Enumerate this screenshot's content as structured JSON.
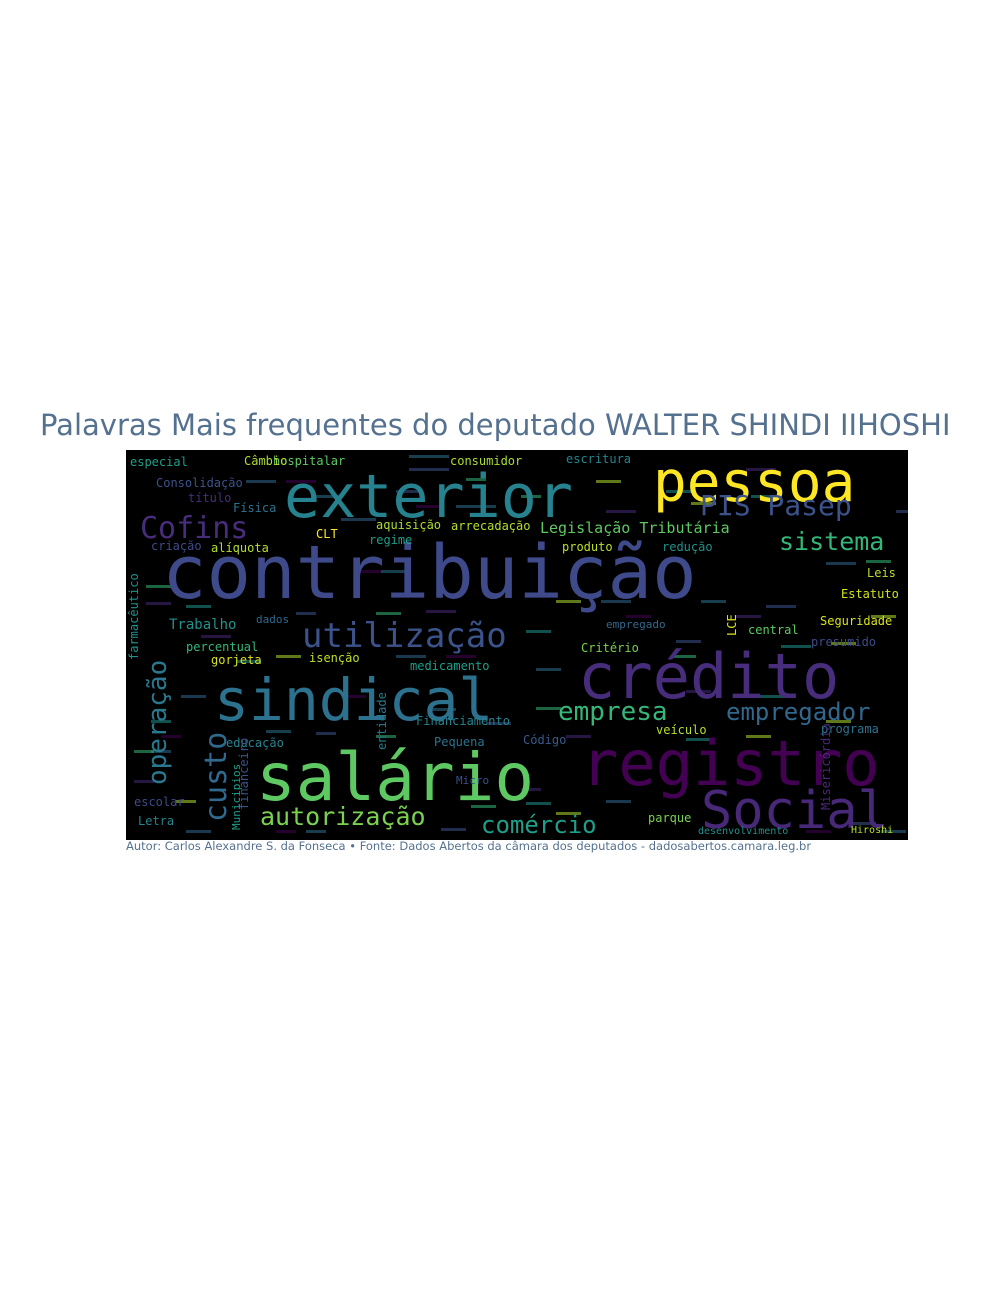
{
  "title": "Palavras Mais frequentes do deputado WALTER SHINDI IIHOSHI",
  "footer": "Autor: Carlos Alexandre S. da Fonseca • Fonte: Dados Abertos da câmara dos deputados - dadosabertos.camara.leg.br",
  "cloud_background": "#000000",
  "words": [
    {
      "text": "contribuição",
      "color": "#3e4a89"
    },
    {
      "text": "exterior",
      "color": "#26828e"
    },
    {
      "text": "pessoa",
      "color": "#fde725"
    },
    {
      "text": "crédito",
      "color": "#472d7b"
    },
    {
      "text": "sindical",
      "color": "#2c718e"
    },
    {
      "text": "salário",
      "color": "#5ec962"
    },
    {
      "text": "registro",
      "color": "#440154"
    },
    {
      "text": "Social",
      "color": "#482878"
    },
    {
      "text": "utilização",
      "color": "#3b528b"
    },
    {
      "text": "PIS Pasep",
      "color": "#3b528b"
    },
    {
      "text": "Cofins",
      "color": "#472d7b"
    },
    {
      "text": "autorização",
      "color": "#7ad151"
    },
    {
      "text": "comércio",
      "color": "#1f9e89"
    },
    {
      "text": "empresa",
      "color": "#35b779"
    },
    {
      "text": "empregador",
      "color": "#31688e"
    },
    {
      "text": "sistema",
      "color": "#35b779"
    },
    {
      "text": "operação",
      "color": "#2a788e"
    },
    {
      "text": "custo",
      "color": "#31688e"
    },
    {
      "text": "Legislação Tributária",
      "color": "#5ec962"
    },
    {
      "text": "Trabalho",
      "color": "#21918c"
    },
    {
      "text": "Seguridade",
      "color": "#d8e219"
    },
    {
      "text": "Estatuto",
      "color": "#d2e21b"
    },
    {
      "text": "hospitalar",
      "color": "#5ec962"
    },
    {
      "text": "Câmbio",
      "color": "#addc30"
    },
    {
      "text": "consumidor",
      "color": "#aadc32"
    },
    {
      "text": "escritura",
      "color": "#25848e"
    },
    {
      "text": "especial",
      "color": "#1f9e89"
    },
    {
      "text": "Consolidação",
      "color": "#3b528b"
    },
    {
      "text": "título",
      "color": "#472d7b"
    },
    {
      "text": "Física",
      "color": "#2c728e"
    },
    {
      "text": "criação",
      "color": "#3e4a89"
    },
    {
      "text": "alíquota",
      "color": "#b5de2b"
    },
    {
      "text": "aquisição",
      "color": "#addc30"
    },
    {
      "text": "arrecadação",
      "color": "#b5de2b"
    },
    {
      "text": "produto",
      "color": "#bddf26"
    },
    {
      "text": "redução",
      "color": "#21918c"
    },
    {
      "text": "Leis",
      "color": "#b5de2b"
    },
    {
      "text": "CLT",
      "color": "#fde725"
    },
    {
      "text": "regime",
      "color": "#1f9e89"
    },
    {
      "text": "percentual",
      "color": "#35b779"
    },
    {
      "text": "gorjeta",
      "color": "#d8e219"
    },
    {
      "text": "isenção",
      "color": "#bddf26"
    },
    {
      "text": "medicamento",
      "color": "#1f9e89"
    },
    {
      "text": "Critério",
      "color": "#7ad151"
    },
    {
      "text": "central",
      "color": "#5ec962"
    },
    {
      "text": "presumido",
      "color": "#3e4a89"
    },
    {
      "text": "educação",
      "color": "#25848e"
    },
    {
      "text": "Financiamento",
      "color": "#26828e"
    },
    {
      "text": "Pequena",
      "color": "#2c728e"
    },
    {
      "text": "Código",
      "color": "#38598c"
    },
    {
      "text": "veículo",
      "color": "#b5de2b"
    },
    {
      "text": "programa",
      "color": "#2c728e"
    },
    {
      "text": "escolar",
      "color": "#3e4a89"
    },
    {
      "text": "Letra",
      "color": "#25848e"
    },
    {
      "text": "parque",
      "color": "#7ad151"
    },
    {
      "text": "desenvolvimento",
      "color": "#21918c"
    },
    {
      "text": "Micro",
      "color": "#3b528b"
    },
    {
      "text": "dados",
      "color": "#31688e"
    },
    {
      "text": "empregado",
      "color": "#31688e"
    },
    {
      "text": "farmacêutico",
      "color": "#21918c"
    },
    {
      "text": "entidade",
      "color": "#2a788e"
    },
    {
      "text": "financeiro",
      "color": "#3b528b"
    },
    {
      "text": "Municipios",
      "color": "#1f9e89"
    },
    {
      "text": "Misericórdia",
      "color": "#482878"
    },
    {
      "text": "LCE",
      "color": "#d8e219"
    },
    {
      "text": "Hiroshi",
      "color": "#b5de2b"
    }
  ]
}
